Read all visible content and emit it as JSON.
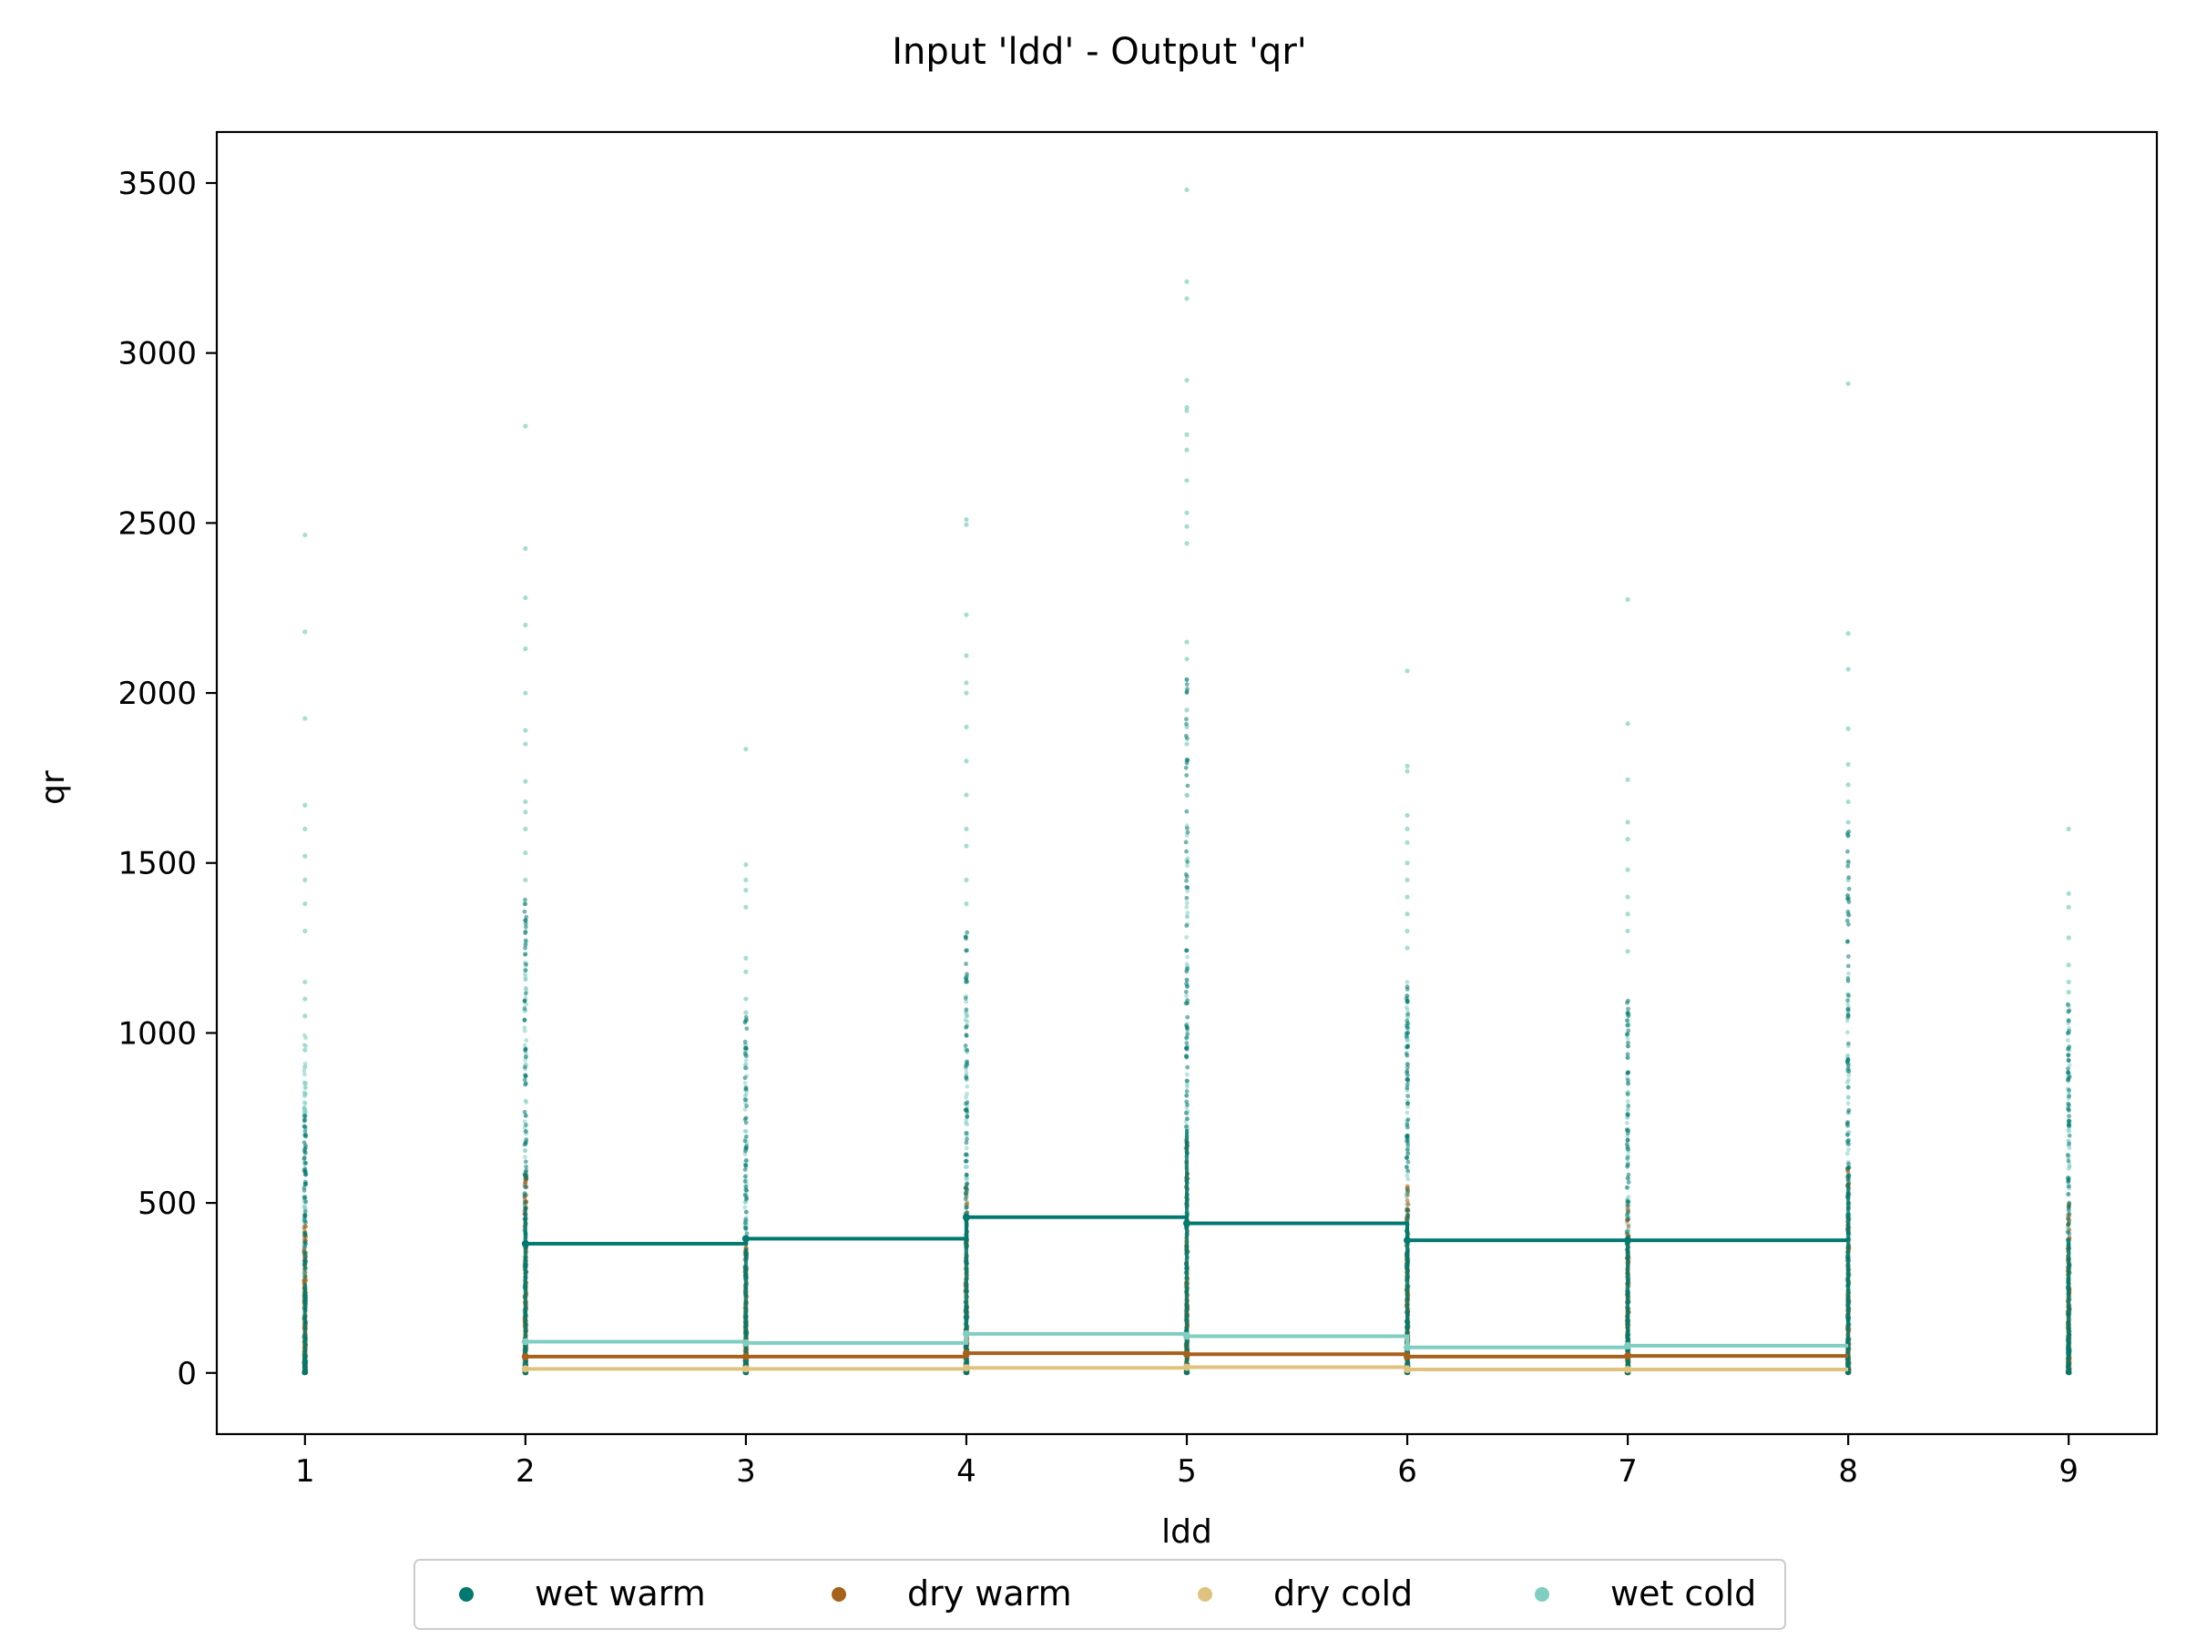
{
  "chart_data": {
    "type": "scatter",
    "title": "Input 'ldd' - Output 'qr'",
    "xlabel": "ldd",
    "ylabel": "qr",
    "xlim": [
      0.6,
      9.4
    ],
    "ylim": [
      -180,
      3650
    ],
    "x_ticks": [
      1,
      2,
      3,
      4,
      5,
      6,
      7,
      8,
      9
    ],
    "y_ticks": [
      0,
      500,
      1000,
      1500,
      2000,
      2500,
      3000,
      3500
    ],
    "grid": false,
    "legend_position": "bottom-center",
    "series": [
      {
        "name": "wet warm",
        "color": "#01796f",
        "scatter_max": [
          760,
          1400,
          1050,
          1300,
          2050,
          1200,
          1150,
          1600,
          1100
        ],
        "step_values": [
          [
            2,
            3,
            380
          ],
          [
            3,
            4,
            395
          ],
          [
            4,
            5,
            458
          ],
          [
            5,
            6,
            440
          ],
          [
            6,
            7,
            390
          ],
          [
            7,
            8,
            390
          ]
        ]
      },
      {
        "name": "dry warm",
        "color": "#a6611a",
        "scatter_max": [
          450,
          600,
          400,
          550,
          700,
          550,
          500,
          620,
          500
        ],
        "step_values": [
          [
            2,
            3,
            48
          ],
          [
            3,
            4,
            48
          ],
          [
            4,
            5,
            58
          ],
          [
            5,
            6,
            55
          ],
          [
            6,
            7,
            48
          ],
          [
            7,
            8,
            50
          ]
        ]
      },
      {
        "name": "dry cold",
        "color": "#dfc27d",
        "scatter_max": [
          300,
          400,
          300,
          350,
          450,
          380,
          330,
          400,
          330
        ],
        "step_values": [
          [
            2,
            3,
            12
          ],
          [
            3,
            4,
            12
          ],
          [
            4,
            5,
            15
          ],
          [
            5,
            6,
            17
          ],
          [
            6,
            7,
            10
          ],
          [
            7,
            8,
            10
          ]
        ]
      },
      {
        "name": "wet cold",
        "color": "#80cdc1",
        "scatter_outliers": [
          [
            2465,
            2180,
            1925,
            1670,
            1600,
            1520,
            1450,
            1380,
            1300,
            1150,
            1100,
            1050,
            950,
            900,
            820
          ],
          [
            2785,
            2425,
            2280,
            2200,
            2130,
            2000,
            1890,
            1850,
            1740,
            1680,
            1650,
            1600,
            1530,
            1450,
            1380
          ],
          [
            1835,
            1495,
            1450,
            1420,
            1370,
            1220,
            1180,
            1100,
            1060,
            950
          ],
          [
            2510,
            2495,
            2230,
            2110,
            2030,
            2000,
            1900,
            1800,
            1700,
            1600,
            1550,
            1450,
            1380
          ],
          [
            3480,
            3210,
            3160,
            2920,
            2840,
            2830,
            2760,
            2715,
            2625,
            2530,
            2490,
            2440,
            2150,
            2100,
            2040,
            1950,
            1900,
            1850,
            1800,
            1700
          ],
          [
            2065,
            1785,
            1770,
            1640,
            1600,
            1560,
            1500,
            1450,
            1400,
            1350,
            1300,
            1250
          ],
          [
            2275,
            1910,
            1745,
            1620,
            1570,
            1480,
            1400,
            1350,
            1300,
            1240
          ],
          [
            2910,
            2175,
            2070,
            1895,
            1790,
            1730,
            1680,
            1620,
            1580,
            1500,
            1450,
            1400,
            1350
          ],
          [
            1600,
            1410,
            1370,
            1280,
            1200,
            1150,
            1120,
            1080,
            1000
          ]
        ],
        "scatter_max": [
          1000,
          1300,
          1000,
          1200,
          1700,
          1150,
          1100,
          1250,
          1050
        ],
        "step_values": [
          [
            2,
            3,
            92
          ],
          [
            3,
            4,
            88
          ],
          [
            4,
            5,
            115
          ],
          [
            5,
            6,
            108
          ],
          [
            6,
            7,
            75
          ],
          [
            7,
            8,
            80
          ]
        ]
      }
    ]
  }
}
